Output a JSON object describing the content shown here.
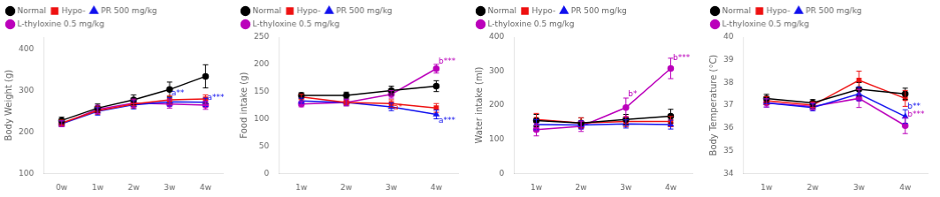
{
  "chart_data": [
    {
      "type": "line",
      "y_label": "Body Weight (g)",
      "categories": [
        "0w",
        "1w",
        "2w",
        "3w",
        "4w"
      ],
      "ylim": [
        100,
        430
      ],
      "yticks": [
        100,
        200,
        300,
        400
      ],
      "grid": false,
      "legend": "upper left",
      "series": [
        {
          "name": "Normal",
          "color": "#000000",
          "marker": "circle",
          "values": [
            228,
            258,
            278,
            303,
            335
          ],
          "errors": [
            8,
            10,
            12,
            18,
            28
          ]
        },
        {
          "name": "Hypo-",
          "color": "#ee1111",
          "marker": "square",
          "values": [
            222,
            252,
            268,
            278,
            280
          ],
          "errors": [
            7,
            9,
            10,
            10,
            10
          ]
        },
        {
          "name": "PR 500 mg/kg",
          "color": "#1111ee",
          "marker": "triangle",
          "values": [
            220,
            250,
            266,
            273,
            272
          ],
          "errors": [
            7,
            9,
            10,
            10,
            10
          ]
        },
        {
          "name": "L-thyloxine 0.5 mg/kg",
          "color": "#bb00bb",
          "marker": "circle",
          "values": [
            220,
            255,
            270,
            268,
            265
          ],
          "errors": [
            7,
            10,
            10,
            10,
            10
          ]
        }
      ],
      "annotations": [
        {
          "text": "a**",
          "x": 3.05,
          "y": 285,
          "color": "#1111ee"
        },
        {
          "text": "a***",
          "x": 4.05,
          "y": 273,
          "color": "#1111ee"
        }
      ]
    },
    {
      "type": "line",
      "y_label": "Food intake (g)",
      "categories": [
        "1w",
        "2w",
        "3w",
        "4w"
      ],
      "ylim": [
        0,
        250
      ],
      "yticks": [
        0,
        50,
        100,
        150,
        200,
        250
      ],
      "grid": false,
      "legend": "upper left",
      "series": [
        {
          "name": "Normal",
          "color": "#000000",
          "marker": "circle",
          "values": [
            143,
            143,
            152,
            160
          ],
          "errors": [
            5,
            6,
            8,
            10
          ]
        },
        {
          "name": "Hypo-",
          "color": "#ee1111",
          "marker": "square",
          "values": [
            140,
            130,
            128,
            120
          ],
          "errors": [
            5,
            6,
            7,
            8
          ]
        },
        {
          "name": "PR 500 mg/kg",
          "color": "#1111ee",
          "marker": "triangle",
          "values": [
            133,
            130,
            122,
            108
          ],
          "errors": [
            5,
            6,
            7,
            8
          ]
        },
        {
          "name": "L-thyloxine 0.5 mg/kg",
          "color": "#bb00bb",
          "marker": "circle",
          "values": [
            127,
            130,
            145,
            192
          ],
          "errors": [
            5,
            6,
            7,
            8
          ]
        }
      ],
      "annotations": [
        {
          "text": "a*",
          "x": 2.05,
          "y": 113,
          "color": "#ee1111"
        },
        {
          "text": "b***",
          "x": 3.05,
          "y": 198,
          "color": "#bb00bb"
        },
        {
          "text": "a***",
          "x": 3.05,
          "y": 90,
          "color": "#1111ee"
        }
      ]
    },
    {
      "type": "line",
      "y_label": "Water intake (ml)",
      "categories": [
        "1w",
        "2w",
        "3w",
        "4w"
      ],
      "ylim": [
        0,
        400
      ],
      "yticks": [
        0,
        100,
        200,
        300,
        400
      ],
      "grid": false,
      "legend": "upper left",
      "series": [
        {
          "name": "Normal",
          "color": "#000000",
          "marker": "circle",
          "values": [
            155,
            148,
            158,
            168
          ],
          "errors": [
            18,
            15,
            15,
            20
          ]
        },
        {
          "name": "Hypo-",
          "color": "#ee1111",
          "marker": "square",
          "values": [
            158,
            148,
            152,
            152
          ],
          "errors": [
            18,
            15,
            15,
            15
          ]
        },
        {
          "name": "PR 500 mg/kg",
          "color": "#1111ee",
          "marker": "triangle",
          "values": [
            143,
            142,
            145,
            143
          ],
          "errors": [
            15,
            12,
            12,
            13
          ]
        },
        {
          "name": "L-thyloxine 0.5 mg/kg",
          "color": "#bb00bb",
          "marker": "circle",
          "values": [
            128,
            138,
            193,
            308
          ],
          "errors": [
            18,
            15,
            28,
            30
          ]
        }
      ],
      "annotations": [
        {
          "text": "b*",
          "x": 2.05,
          "y": 220,
          "color": "#bb00bb"
        },
        {
          "text": "b***",
          "x": 3.05,
          "y": 328,
          "color": "#bb00bb"
        }
      ]
    },
    {
      "type": "line",
      "y_label": "Body Temperature (°C)",
      "categories": [
        "1w",
        "2w",
        "3w",
        "4w"
      ],
      "ylim": [
        34,
        40
      ],
      "yticks": [
        34,
        35,
        36,
        37,
        38,
        39,
        40
      ],
      "grid": false,
      "legend": "upper left",
      "series": [
        {
          "name": "Normal",
          "color": "#000000",
          "marker": "circle",
          "values": [
            37.3,
            37.1,
            37.7,
            37.5
          ],
          "errors": [
            0.18,
            0.15,
            0.3,
            0.25
          ]
        },
        {
          "name": "Hypo-",
          "color": "#ee1111",
          "marker": "square",
          "values": [
            37.2,
            37.0,
            38.1,
            37.3
          ],
          "errors": [
            0.18,
            0.15,
            0.4,
            0.35
          ]
        },
        {
          "name": "PR 500 mg/kg",
          "color": "#1111ee",
          "marker": "triangle",
          "values": [
            37.1,
            36.9,
            37.5,
            36.5
          ],
          "errors": [
            0.18,
            0.15,
            0.3,
            0.3
          ]
        },
        {
          "name": "L-thyloxine 0.5 mg/kg",
          "color": "#bb00bb",
          "marker": "circle",
          "values": [
            37.1,
            36.95,
            37.3,
            36.1
          ],
          "errors": [
            0.18,
            0.15,
            0.4,
            0.35
          ]
        }
      ],
      "annotations": [
        {
          "text": "b**",
          "x": 3.05,
          "y": 36.75,
          "color": "#1111ee"
        },
        {
          "text": "b***",
          "x": 3.05,
          "y": 36.42,
          "color": "#bb00bb"
        }
      ]
    }
  ]
}
